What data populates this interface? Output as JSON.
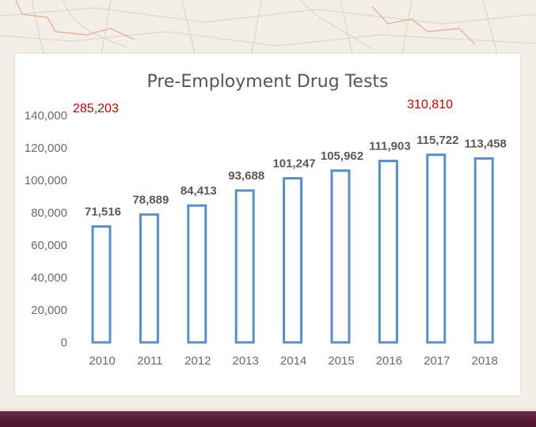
{
  "colors": {
    "bar_stroke": "#5b8fc4",
    "bar_fill": "#ffffff",
    "annotation": "#c00000",
    "footer": "#5a1a32"
  },
  "chart_data": {
    "type": "bar",
    "title": "Pre-Employment Drug Tests",
    "xlabel": "",
    "ylabel": "",
    "categories": [
      "2010",
      "2011",
      "2012",
      "2013",
      "2014",
      "2015",
      "2016",
      "2017",
      "2018"
    ],
    "values": [
      71516,
      78889,
      84413,
      93688,
      101247,
      105962,
      111903,
      115722,
      113458
    ],
    "value_labels": [
      "71,516",
      "78,889",
      "84,413",
      "93,688",
      "101,247",
      "105,962",
      "111,903",
      "115,722",
      "113,458"
    ],
    "ylim": [
      0,
      140000
    ],
    "yticks": [
      0,
      20000,
      40000,
      60000,
      80000,
      100000,
      120000,
      140000
    ],
    "ytick_labels": [
      "0",
      "20,000",
      "40,000",
      "60,000",
      "80,000",
      "100,000",
      "120,000",
      "140,000"
    ],
    "grid": false,
    "legend": "none",
    "annotations": [
      {
        "text": "285,203",
        "placement": "top-left"
      },
      {
        "text": "310,810",
        "placement": "top-right"
      }
    ]
  }
}
